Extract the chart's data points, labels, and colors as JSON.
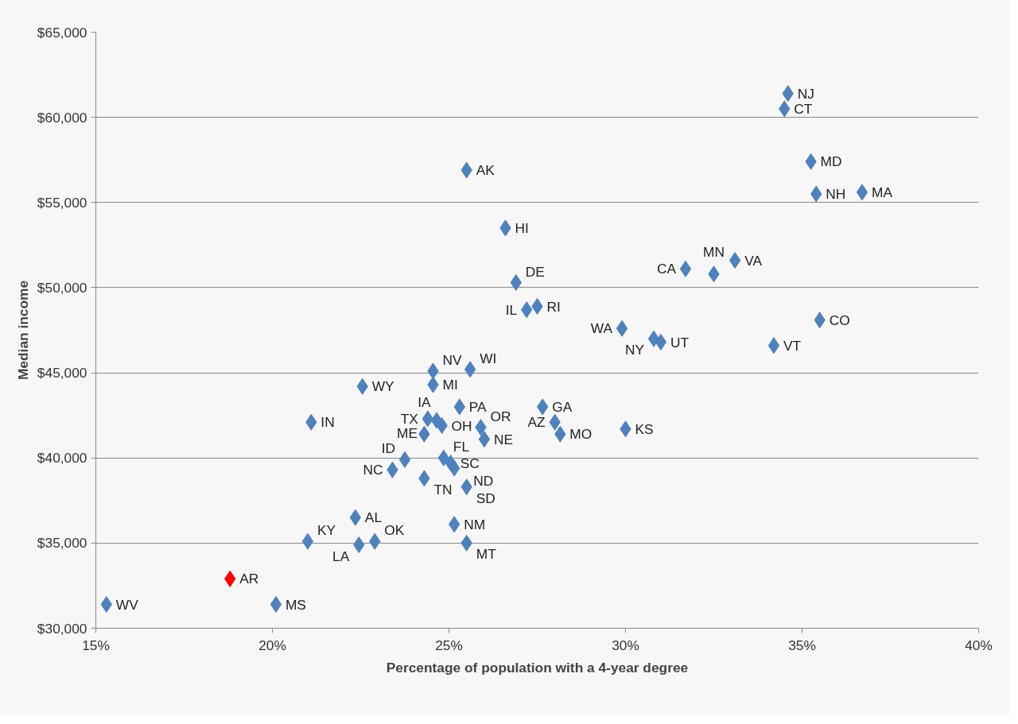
{
  "chart_data": {
    "type": "scatter",
    "xlabel": "Percentage of population with a 4-year degree",
    "ylabel": "Median income",
    "marker": "diamond",
    "grid": "y",
    "xlim": [
      15,
      40
    ],
    "xticks": [
      {
        "value": 15,
        "label": "15%"
      },
      {
        "value": 20,
        "label": "20%"
      },
      {
        "value": 25,
        "label": "25%"
      },
      {
        "value": 30,
        "label": "30%"
      },
      {
        "value": 35,
        "label": "35%"
      },
      {
        "value": 40,
        "label": "40%"
      }
    ],
    "ylim": [
      30000,
      65000
    ],
    "yticks": [
      {
        "value": 30000,
        "label": "$30,000"
      },
      {
        "value": 35000,
        "label": "$35,000"
      },
      {
        "value": 40000,
        "label": "$40,000"
      },
      {
        "value": 45000,
        "label": "$45,000"
      },
      {
        "value": 50000,
        "label": "$50,000"
      },
      {
        "value": 55000,
        "label": "$55,000"
      },
      {
        "value": 60000,
        "label": "$60,000"
      },
      {
        "value": 65000,
        "label": "$65,000"
      }
    ],
    "x": [
      15.3,
      18.8,
      20.1,
      21.0,
      22.35,
      22.45,
      22.9,
      21.1,
      22.55,
      23.4,
      23.75,
      24.3,
      24.4,
      24.65,
      24.3,
      24.8,
      24.55,
      24.55,
      25.3,
      25.6,
      25.9,
      26.0,
      24.85,
      25.05,
      25.15,
      25.5,
      25.15,
      25.5,
      27.65,
      28.0,
      28.15,
      30.0,
      25.5,
      26.6,
      26.9,
      27.2,
      27.5,
      29.9,
      30.8,
      31.0,
      31.7,
      32.5,
      33.1,
      34.2,
      35.5,
      34.6,
      34.5,
      35.25,
      35.4,
      36.7
    ],
    "values": [
      31400,
      32900,
      31400,
      35100,
      36500,
      34900,
      35100,
      42100,
      44200,
      39300,
      39900,
      38800,
      42300,
      42200,
      41400,
      41900,
      44300,
      45100,
      43000,
      45200,
      41800,
      41100,
      40000,
      39700,
      39400,
      38300,
      36100,
      35000,
      43000,
      42100,
      41400,
      41700,
      56900,
      53500,
      50300,
      48700,
      48900,
      47600,
      47000,
      46800,
      51100,
      50800,
      51600,
      46600,
      48100,
      61400,
      60500,
      57400,
      55500,
      55600
    ],
    "colors": [
      "#4f81bd",
      "#ff0000",
      "#4f81bd",
      "#4f81bd",
      "#4f81bd",
      "#4f81bd",
      "#4f81bd",
      "#4f81bd",
      "#4f81bd",
      "#4f81bd",
      "#4f81bd",
      "#4f81bd",
      "#4f81bd",
      "#4f81bd",
      "#4f81bd",
      "#4f81bd",
      "#4f81bd",
      "#4f81bd",
      "#4f81bd",
      "#4f81bd",
      "#4f81bd",
      "#4f81bd",
      "#4f81bd",
      "#4f81bd",
      "#4f81bd",
      "#4f81bd",
      "#4f81bd",
      "#4f81bd",
      "#4f81bd",
      "#4f81bd",
      "#4f81bd",
      "#4f81bd",
      "#4f81bd",
      "#4f81bd",
      "#4f81bd",
      "#4f81bd",
      "#4f81bd",
      "#4f81bd",
      "#4f81bd",
      "#4f81bd",
      "#4f81bd",
      "#4f81bd",
      "#4f81bd",
      "#4f81bd",
      "#4f81bd",
      "#4f81bd",
      "#4f81bd",
      "#4f81bd",
      "#4f81bd",
      "#4f81bd"
    ],
    "annotations": [
      {
        "text": "WV",
        "x": 15.3,
        "y": 31400
      },
      {
        "text": "AR",
        "x": 18.8,
        "y": 32900
      },
      {
        "text": "MS",
        "x": 20.1,
        "y": 31400
      },
      {
        "text": "KY",
        "x": 21.0,
        "y": 35100
      },
      {
        "text": "AL",
        "x": 22.35,
        "y": 36500
      },
      {
        "text": "LA",
        "x": 22.45,
        "y": 34900
      },
      {
        "text": "OK",
        "x": 22.9,
        "y": 35100
      },
      {
        "text": "IN",
        "x": 21.1,
        "y": 42100
      },
      {
        "text": "WY",
        "x": 22.55,
        "y": 44200
      },
      {
        "text": "NC",
        "x": 23.4,
        "y": 39300
      },
      {
        "text": "ID",
        "x": 23.75,
        "y": 39900
      },
      {
        "text": "TN",
        "x": 24.3,
        "y": 38800
      },
      {
        "text": "TX",
        "x": 24.4,
        "y": 42300
      },
      {
        "text": "ME",
        "x": 24.65,
        "y": 42200
      },
      {
        "text": "IA",
        "x": 24.3,
        "y": 41400
      },
      {
        "text": "OH",
        "x": 24.8,
        "y": 41900
      },
      {
        "text": "MI",
        "x": 24.55,
        "y": 44300
      },
      {
        "text": "NV",
        "x": 24.55,
        "y": 45100
      },
      {
        "text": "PA",
        "x": 25.3,
        "y": 43000
      },
      {
        "text": "WI",
        "x": 25.6,
        "y": 45200
      },
      {
        "text": "OR",
        "x": 25.9,
        "y": 41800
      },
      {
        "text": "NE",
        "x": 26.0,
        "y": 41100
      },
      {
        "text": "FL",
        "x": 24.85,
        "y": 40000
      },
      {
        "text": "SC",
        "x": 25.05,
        "y": 39700
      },
      {
        "text": "ND",
        "x": 25.15,
        "y": 39400
      },
      {
        "text": "SD",
        "x": 25.5,
        "y": 38300
      },
      {
        "text": "NM",
        "x": 25.15,
        "y": 36100
      },
      {
        "text": "MT",
        "x": 25.5,
        "y": 35000
      },
      {
        "text": "GA",
        "x": 27.65,
        "y": 43000
      },
      {
        "text": "AZ",
        "x": 28.0,
        "y": 42100
      },
      {
        "text": "MO",
        "x": 28.15,
        "y": 41400
      },
      {
        "text": "KS",
        "x": 30.0,
        "y": 41700
      },
      {
        "text": "AK",
        "x": 25.5,
        "y": 56900
      },
      {
        "text": "HI",
        "x": 26.6,
        "y": 53500
      },
      {
        "text": "DE",
        "x": 26.9,
        "y": 50300
      },
      {
        "text": "IL",
        "x": 27.2,
        "y": 48700
      },
      {
        "text": "RI",
        "x": 27.5,
        "y": 48900
      },
      {
        "text": "WA",
        "x": 29.9,
        "y": 47600
      },
      {
        "text": "NY",
        "x": 30.8,
        "y": 47000
      },
      {
        "text": "UT",
        "x": 31.0,
        "y": 46800
      },
      {
        "text": "CA",
        "x": 31.7,
        "y": 51100
      },
      {
        "text": "MN",
        "x": 32.5,
        "y": 50800
      },
      {
        "text": "VA",
        "x": 33.1,
        "y": 51600
      },
      {
        "text": "VT",
        "x": 34.2,
        "y": 46600
      },
      {
        "text": "CO",
        "x": 35.5,
        "y": 48100
      },
      {
        "text": "NJ",
        "x": 34.6,
        "y": 61400
      },
      {
        "text": "CT",
        "x": 34.5,
        "y": 60500
      },
      {
        "text": "MD",
        "x": 35.25,
        "y": 57400
      },
      {
        "text": "NH",
        "x": 35.4,
        "y": 55500
      },
      {
        "text": "MA",
        "x": 36.7,
        "y": 55600
      }
    ]
  }
}
